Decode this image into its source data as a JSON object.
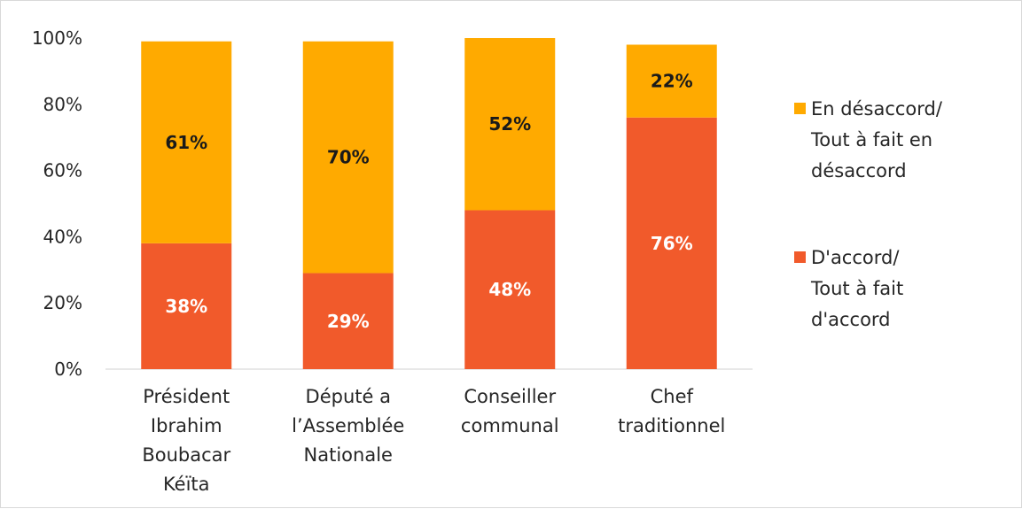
{
  "chart_data": {
    "type": "bar",
    "stacked": true,
    "categories": [
      [
        "Président",
        "Ibrahim",
        "Boubacar",
        "Kéïta"
      ],
      [
        "Député a",
        "l’Assemblée",
        "Nationale"
      ],
      [
        "Conseiller",
        "communal"
      ],
      [
        "Chef",
        "traditionnel"
      ]
    ],
    "series": [
      {
        "name": [
          "D'accord/",
          "Tout à fait",
          "d'accord"
        ],
        "values": [
          38,
          29,
          48,
          76
        ],
        "labels": [
          "38%",
          "29%",
          "48%",
          "76%"
        ],
        "color": "#F15A2B",
        "label_color": "#ffffff"
      },
      {
        "name": [
          "En désaccord/",
          "Tout à fait en",
          "désaccord"
        ],
        "values": [
          61,
          70,
          52,
          22
        ],
        "labels": [
          "61%",
          "70%",
          "52%",
          "22%"
        ],
        "color": "#FFAA00",
        "label_color": "#1a1a1a"
      }
    ],
    "ylim": [
      0,
      100
    ],
    "yticks": [
      "0%",
      "20%",
      "40%",
      "60%",
      "80%",
      "100%"
    ],
    "grid": false,
    "legend_position": "right"
  }
}
